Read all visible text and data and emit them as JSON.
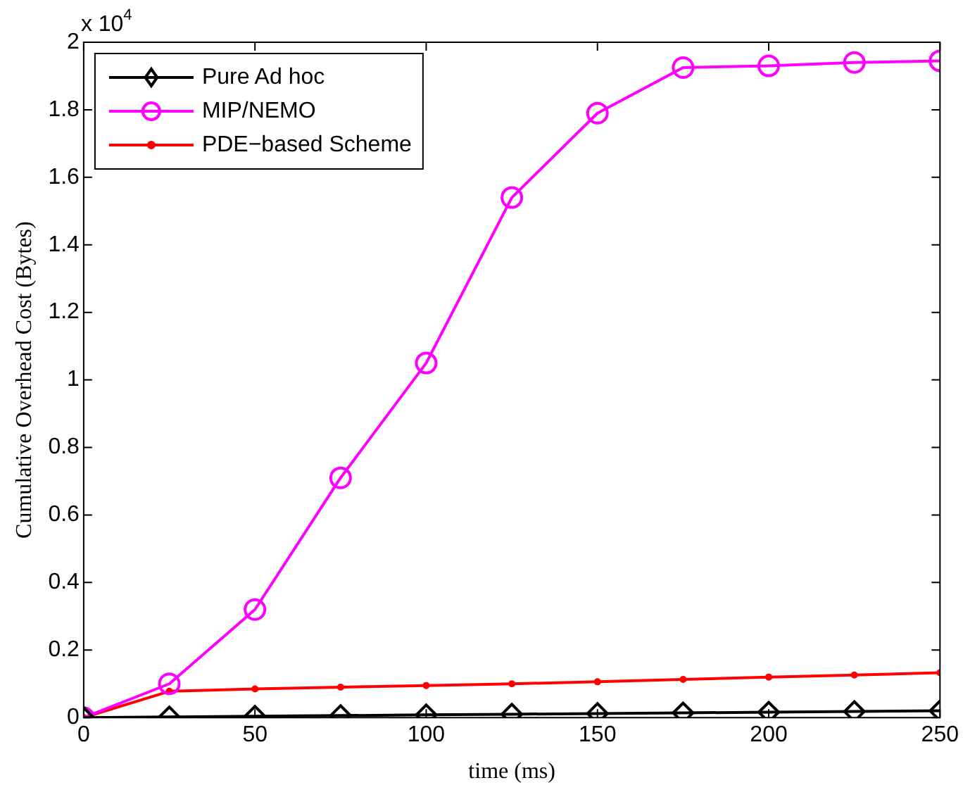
{
  "chart_data": {
    "type": "line",
    "xlabel": "time (ms)",
    "ylabel": "Cumulative Overhead Cost (Bytes)",
    "annotations": [
      "x 10$^{4}$"
    ],
    "x": [
      0,
      25,
      50,
      75,
      100,
      125,
      150,
      175,
      200,
      225,
      250
    ],
    "series": [
      {
        "name": "Pure Ad hoc",
        "color": "#000000",
        "marker": "diamond",
        "values": [
          0,
          0.002,
          0.004,
          0.006,
          0.008,
          0.01,
          0.012,
          0.014,
          0.016,
          0.018,
          0.02
        ]
      },
      {
        "name": "MIP/NEMO",
        "color": "#ff00ff",
        "marker": "circle",
        "values": [
          0,
          0.1,
          0.32,
          0.71,
          1.05,
          1.54,
          1.79,
          1.925,
          1.93,
          1.94,
          1.945
        ]
      },
      {
        "name": "PDE−based Scheme",
        "color": "#ff0000",
        "marker": "circle",
        "values": [
          0,
          0.078,
          0.085,
          0.09,
          0.095,
          0.1,
          0.106,
          0.113,
          0.12,
          0.126,
          0.133
        ]
      }
    ],
    "xlim": [
      0,
      250
    ],
    "xticks": [
      0,
      50,
      100,
      150,
      200,
      250
    ],
    "ylim": [
      0,
      2
    ],
    "yticks": [
      0,
      0.2,
      0.4,
      0.6,
      0.8,
      1,
      1.2,
      1.4,
      1.6,
      1.8,
      2
    ],
    "grid": false,
    "legend": "top left",
    "line_style": "solid"
  }
}
